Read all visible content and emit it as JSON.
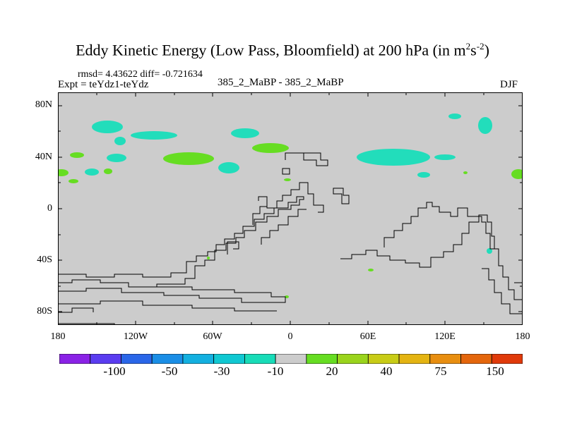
{
  "title": {
    "main": "Eddy Kinetic Energy (Low Pass, Bloomfield) at 200 hPa (in m",
    "sup1": "2",
    "mid": "s",
    "sup2": "-2",
    "end": ")"
  },
  "stats": {
    "rmsd": "rmsd= 4.43622 diff= -0.721634"
  },
  "experiment": "Expt = teYdz1-teYdz",
  "center_label": "385_2_MaBP - 385_2_MaBP",
  "season": "DJF",
  "map": {
    "lat_labels": [
      "80N",
      "40N",
      "0",
      "40S",
      "80S"
    ],
    "lon_labels": [
      "180",
      "120W",
      "60W",
      "0",
      "60E",
      "120E",
      "180"
    ],
    "background_color": "#cccccc",
    "positive_color": "#66dd22",
    "negative_color": "#22ddbb"
  },
  "colorbar": {
    "labels": [
      "-100",
      "-50",
      "-30",
      "-10",
      "20",
      "40",
      "75",
      "150"
    ],
    "colors": [
      "#8a22e6",
      "#5a3cf0",
      "#2a66e8",
      "#1a8ee6",
      "#13b0e0",
      "#10c8d2",
      "#18dcb8",
      "#cccccc",
      "#66dd22",
      "#9ad41c",
      "#c8cc16",
      "#e4b412",
      "#e88e10",
      "#e4660c",
      "#e03a0a"
    ]
  }
}
